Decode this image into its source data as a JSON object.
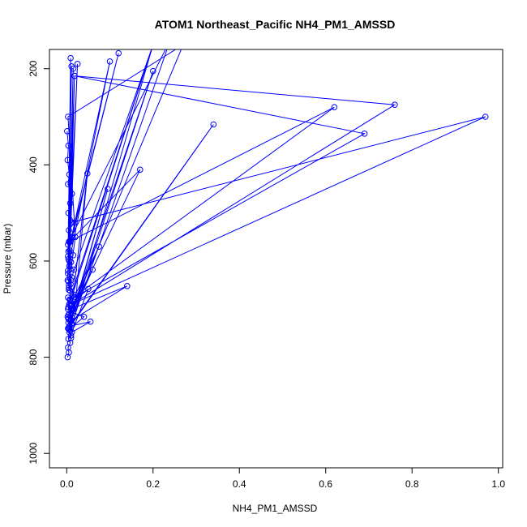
{
  "chart_data": {
    "type": "scatter",
    "title": "ATOM1 Northeast_Pacific NH4_PM1_AMSSD",
    "xlabel": "NH4_PM1_AMSSD",
    "ylabel": "Pressure (mbar)",
    "xlim": [
      -0.04,
      1.01
    ],
    "ylim": [
      1030,
      160
    ],
    "y_reversed": true,
    "x_ticks": [
      "0.0",
      "0.2",
      "0.4",
      "0.6",
      "0.8",
      "1.0"
    ],
    "x_tick_values": [
      0,
      0.2,
      0.4,
      0.6,
      0.8,
      1.0
    ],
    "y_ticks": [
      "200",
      "400",
      "600",
      "800",
      "1000"
    ],
    "y_tick_values": [
      200,
      400,
      600,
      800,
      1000
    ],
    "grid": false,
    "legend": "none",
    "series_color": "#0000ff",
    "series": [
      {
        "x": [
          0.002,
          0.005,
          0.003,
          0.008,
          0.004,
          0.01,
          0.006,
          0.003,
          0.012,
          0.004,
          0.009,
          0.002,
          0.007,
          0.011,
          0.004,
          0.006,
          0.014,
          0.003,
          0.02,
          0.008,
          0.005,
          0.009,
          0.004,
          0.012,
          0.003,
          0.017,
          0.006,
          0.01,
          0.004,
          0.015,
          0.007,
          0.003,
          0.011,
          0.005,
          0.018,
          0.004,
          0.008,
          0.012,
          0.003,
          0.006,
          0.002,
          0.004,
          0.001
        ],
        "y": [
          800,
          790,
          780,
          770,
          762,
          755,
          748,
          740,
          734,
          728,
          722,
          716,
          710,
          702,
          696,
          690,
          684,
          676,
          670,
          662,
          656,
          648,
          642,
          634,
          626,
          618,
          610,
          602,
          596,
          588,
          578,
          566,
          550,
          536,
          520,
          500,
          480,
          460,
          440,
          420,
          390,
          360,
          330
        ]
      },
      {
        "x": [
          0.003,
          0.007,
          0.2,
          0.005,
          0.02,
          0.003,
          0.27,
          0.004,
          0.01,
          0.005,
          0.24,
          0.012,
          0.006,
          0.2,
          0.008,
          0.004,
          0.01
        ],
        "y": [
          700,
          680,
          150,
          650,
          550,
          300,
          150,
          720,
          640,
          560,
          140,
          730,
          690,
          150,
          745,
          720,
          760
        ]
      },
      {
        "x": [
          0.01,
          0.97,
          0.012,
          0.76,
          0.018,
          0.69,
          0.009,
          0.62,
          0.006,
          0.17,
          0.015,
          0.2,
          0.005,
          0.34,
          0.011
        ],
        "y": [
          520,
          300,
          690,
          275,
          215,
          335,
          680,
          280,
          560,
          410,
          700,
          205,
          740,
          316,
          730
        ]
      },
      {
        "x": [
          0.01,
          0.14,
          0.008,
          0.095,
          0.006,
          0.055,
          0.012,
          0.05,
          0.009,
          0.075,
          0.004,
          0.06,
          0.015,
          0.04,
          0.006,
          0.048,
          0.02
        ],
        "y": [
          700,
          652,
          725,
          450,
          736,
          726,
          748,
          658,
          690,
          570,
          712,
          618,
          708,
          716,
          742,
          418,
          690
        ]
      },
      {
        "x": [
          0.003,
          0.025,
          0.006,
          0.1,
          0.004,
          0.12,
          0.008,
          0.018,
          0.002,
          0.015,
          0.005,
          0.009,
          0.003,
          0.011
        ],
        "y": [
          620,
          190,
          600,
          185,
          580,
          168,
          560,
          215,
          640,
          200,
          660,
          178,
          590,
          195
        ]
      }
    ]
  }
}
